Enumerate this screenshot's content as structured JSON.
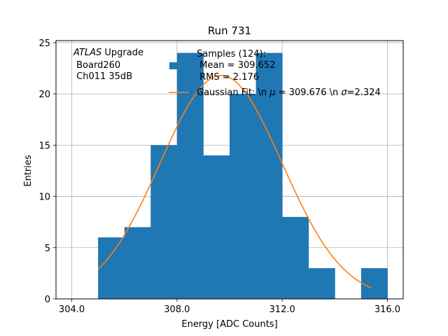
{
  "chart_data": {
    "type": "bar",
    "title": "Run 731",
    "xlabel": "Energy [ADC Counts]",
    "ylabel": "Entries",
    "xlim": [
      303.4,
      316.6
    ],
    "ylim": [
      0,
      25.2
    ],
    "xticks": [
      304.0,
      308.0,
      312.0,
      316.0
    ],
    "xtick_labels": [
      "304.0",
      "308.0",
      "312.0",
      "316.0"
    ],
    "yticks": [
      0,
      5,
      10,
      15,
      20,
      25
    ],
    "ytick_labels": [
      "0",
      "5",
      "10",
      "15",
      "20",
      "25"
    ],
    "grid": true,
    "histogram": {
      "bin_edges": [
        305,
        306,
        307,
        308,
        309,
        310,
        311,
        312,
        313,
        314,
        315,
        316
      ],
      "counts": [
        6,
        7,
        15,
        24,
        14,
        20,
        24,
        8,
        3,
        0,
        3
      ],
      "color": "#1f77b4"
    },
    "fit": {
      "type": "gaussian",
      "mu": 309.676,
      "sigma": 2.324,
      "amplitude": 21.8,
      "x_range": [
        305.0,
        315.4
      ],
      "color": "#ff7f0e"
    },
    "annotation": {
      "italic_word": "ATLAS",
      "line1_rest": " Upgrade",
      "line2": " Board260",
      "line3": " Ch011 35dB"
    },
    "legend": {
      "position": "top-right",
      "samples_lines": [
        "Samples (124):",
        " Mean = 309.652",
        " RMS = 2.176"
      ],
      "fit_prefix": "Gaussian Fit: \\n ",
      "fit_mu_symbol": "μ",
      "fit_mid": " = 309.676 \\n ",
      "fit_sigma_symbol": "σ",
      "fit_suffix": "=2.324"
    }
  }
}
